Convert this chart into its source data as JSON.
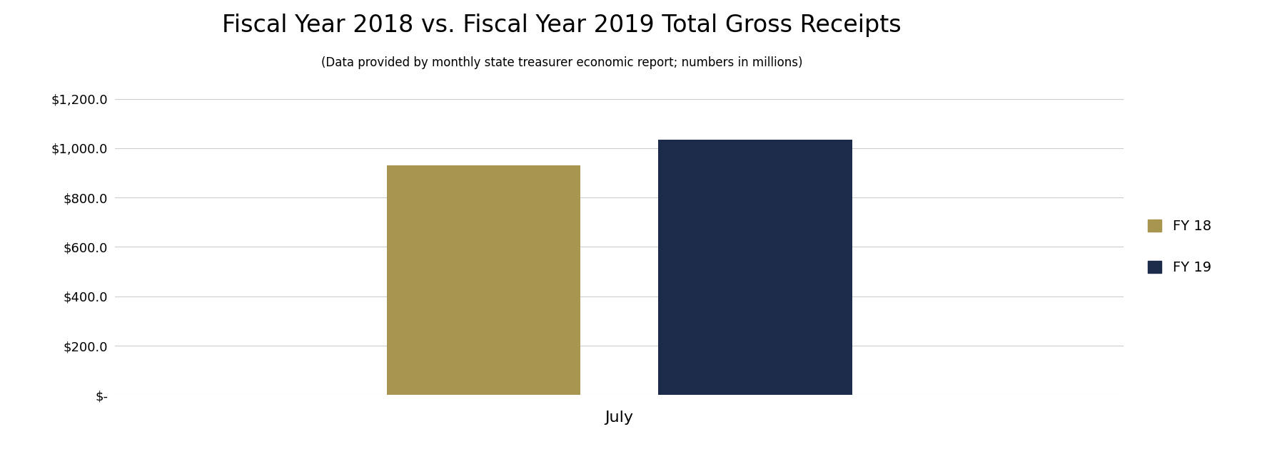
{
  "title": "Fiscal Year 2018 vs. Fiscal Year 2019 Total Gross Receipts",
  "subtitle": "(Data provided by monthly state treasurer economic report; numbers in millions)",
  "categories": [
    "July"
  ],
  "fy18_values": [
    931.0
  ],
  "fy19_values": [
    1035.0
  ],
  "fy18_color": "#a89650",
  "fy19_color": "#1c2b4a",
  "ylim": [
    0,
    1200
  ],
  "yticks": [
    0,
    200,
    400,
    600,
    800,
    1000,
    1200
  ],
  "ytick_labels": [
    "$-",
    "$200.0",
    "$400.0",
    "$600.0",
    "$800.0",
    "$1,000.0",
    "$1,200.0"
  ],
  "legend_labels": [
    "FY 18",
    "FY 19"
  ],
  "xlabel": "July",
  "bar_width": 0.25,
  "background_color": "#ffffff",
  "title_fontsize": 24,
  "subtitle_fontsize": 12,
  "tick_fontsize": 13,
  "legend_fontsize": 14,
  "xlabel_fontsize": 16
}
